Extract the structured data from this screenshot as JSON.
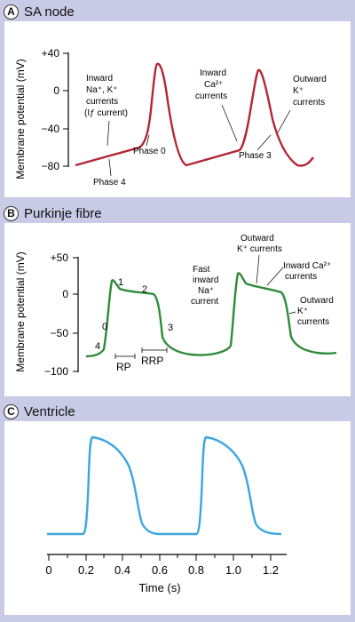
{
  "panels": {
    "a": {
      "badge": "A",
      "title": "SA node",
      "ylabel": "Membrane potential (mV)",
      "yticks": [
        "+40",
        "0",
        "−40",
        "−80"
      ],
      "labels": {
        "inward_na_k_1": "Inward",
        "inward_na_k_2": "Na⁺, K⁺",
        "inward_na_k_3": "currents",
        "inward_na_k_4": "(Iƒ current)",
        "phase0": "Phase 0",
        "phase3": "Phase 3",
        "phase4": "Phase 4",
        "inward_ca_1": "Inward",
        "inward_ca_2": "Ca²⁺",
        "inward_ca_3": "currents",
        "outward_k_1": "Outward",
        "outward_k_2": "K⁺",
        "outward_k_3": "currents"
      },
      "line_color": "#b32636"
    },
    "b": {
      "badge": "B",
      "title": "Purkinje fibre",
      "ylabel": "Membrane potential (mV)",
      "yticks": [
        "+50",
        "0",
        "−50",
        "−100"
      ],
      "labels": {
        "p0": "0",
        "p1": "1",
        "p2": "2",
        "p3": "3",
        "p4": "4",
        "rp": "RP",
        "rrp": "RRP",
        "fast_1": "Fast",
        "fast_2": "inward",
        "fast_3": "Na⁺",
        "fast_4": "current",
        "outk_1": "Outward",
        "outk_2": "K⁺ currents",
        "inca_1": "Inward Ca²⁺",
        "inca_2": "currents",
        "outk2_1": "Outward",
        "outk2_2": "K⁺",
        "outk2_3": "currents"
      },
      "line_color": "#2e8b3a"
    },
    "c": {
      "badge": "C",
      "title": "Ventricle",
      "xticks": [
        "0",
        "0.2",
        "0.4",
        "0.6",
        "0.8",
        "1.0",
        "1.2"
      ],
      "xlabel": "Time (s)",
      "line_color": "#3aa7df"
    }
  }
}
